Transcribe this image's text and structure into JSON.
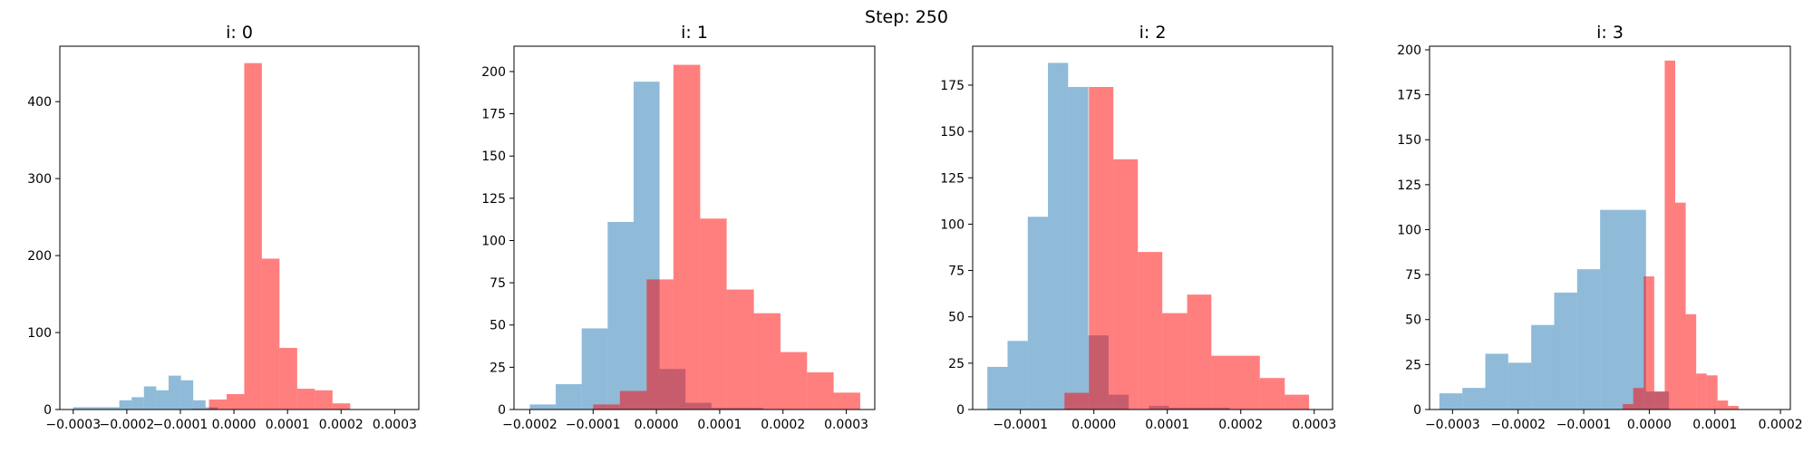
{
  "figure": {
    "suptitle": "Step: 250"
  },
  "colors": {
    "blue": "#1f77b4",
    "red": "#ff0000"
  },
  "chart_data": [
    {
      "type": "histogram",
      "title": "i: 0",
      "xlim": [
        -0.000325,
        0.000345
      ],
      "ylim": [
        0,
        472
      ],
      "xticks": [
        -0.0003,
        -0.0002,
        -0.0001,
        0.0,
        0.0001,
        0.0002,
        0.0003
      ],
      "xtick_labels": [
        "−0.0003",
        "−0.0002",
        "−0.0001",
        "0.0000",
        "0.0001",
        "0.0002",
        "0.0003"
      ],
      "yticks": [
        0,
        100,
        200,
        300,
        400
      ],
      "ytick_labels": [
        "0",
        "100",
        "200",
        "300",
        "400"
      ],
      "series": [
        {
          "color": "blue",
          "opacity": 0.5,
          "edges": [
            -0.0003,
            -0.000257,
            -0.000214,
            -0.000191,
            -0.000168,
            -0.000145,
            -0.000122,
            -9.9e-05,
            -7.6e-05,
            -5.3e-05,
            -3e-05,
            0.0
          ],
          "counts": [
            3,
            3,
            12,
            16,
            30,
            25,
            44,
            38,
            12,
            3,
            0
          ]
        },
        {
          "color": "red",
          "opacity": 0.5,
          "edges": [
            -7.95e-05,
            -4.66e-05,
            -1.37e-05,
            1.92e-05,
            5.21e-05,
            8.5e-05,
            0.000118,
            0.000151,
            0.000184,
            0.000217,
            0.00025,
            0.000283
          ],
          "counts": [
            1,
            13,
            20,
            450,
            196,
            80,
            27,
            25,
            8,
            0,
            0
          ]
        }
      ]
    },
    {
      "type": "histogram",
      "title": "i: 1",
      "xlim": [
        -0.000225,
        0.000345
      ],
      "ylim": [
        0,
        215
      ],
      "xticks": [
        -0.0002,
        -0.0001,
        0.0,
        0.0001,
        0.0002,
        0.0003
      ],
      "xtick_labels": [
        "−0.0002",
        "−0.0001",
        "0.0000",
        "0.0001",
        "0.0002",
        "0.0003"
      ],
      "yticks": [
        0,
        25,
        50,
        75,
        100,
        125,
        150,
        175,
        200
      ],
      "ytick_labels": [
        "0",
        "25",
        "50",
        "75",
        "100",
        "125",
        "150",
        "175",
        "200"
      ],
      "series": [
        {
          "color": "blue",
          "opacity": 0.5,
          "edges": [
            -0.0002,
            -0.000159,
            -0.000118,
            -7.7e-05,
            -3.6e-05,
            5e-06,
            4.6e-05,
            8.7e-05,
            0.000128,
            0.000169,
            0.00021
          ],
          "counts": [
            3,
            15,
            48,
            111,
            194,
            24,
            4,
            1,
            1,
            0
          ]
        },
        {
          "color": "red",
          "opacity": 0.5,
          "edges": [
            -0.0001,
            -5.77e-05,
            -1.54e-05,
            2.69e-05,
            6.92e-05,
            0.000111,
            0.000154,
            0.000196,
            0.000238,
            0.00028,
            0.000322
          ],
          "counts": [
            3,
            11,
            77,
            204,
            113,
            71,
            57,
            34,
            22,
            10
          ]
        }
      ]
    },
    {
      "type": "histogram",
      "title": "i: 2",
      "xlim": [
        -0.000165,
        0.000325
      ],
      "ylim": [
        0,
        196
      ],
      "xticks": [
        -0.0001,
        0.0,
        0.0001,
        0.0002,
        0.0003
      ],
      "xtick_labels": [
        "−0.0001",
        "0.0000",
        "0.0001",
        "0.0002",
        "0.0003"
      ],
      "yticks": [
        0,
        25,
        50,
        75,
        100,
        125,
        150,
        175
      ],
      "ytick_labels": [
        "0",
        "25",
        "50",
        "75",
        "100",
        "125",
        "150",
        "175"
      ],
      "series": [
        {
          "color": "blue",
          "opacity": 0.5,
          "edges": [
            -0.000145,
            -0.0001175,
            -9e-05,
            -6.25e-05,
            -3.5e-05,
            -7.5e-06,
            2e-05,
            4.75e-05,
            7.5e-05,
            0.0001025,
            0.00013,
            0.0001575,
            0.000185,
            0.0002125,
            0.00024
          ],
          "counts": [
            23,
            37,
            104,
            187,
            174,
            40,
            8,
            0,
            2,
            1,
            1,
            1,
            0,
            0
          ]
        },
        {
          "color": "red",
          "opacity": 0.5,
          "edges": [
            -4e-05,
            -6.7e-06,
            2.66e-05,
            5.99e-05,
            9.32e-05,
            0.000127,
            0.00016,
            0.000193,
            0.000226,
            0.00026,
            0.000293,
            0.000326
          ],
          "counts": [
            9,
            174,
            135,
            85,
            52,
            62,
            29,
            29,
            17,
            8,
            0
          ]
        }
      ]
    },
    {
      "type": "histogram",
      "title": "i: 3",
      "xlim": [
        -0.000335,
        0.000215
      ],
      "ylim": [
        0,
        202
      ],
      "xticks": [
        -0.0003,
        -0.0002,
        -0.0001,
        0.0,
        0.0001,
        0.0002
      ],
      "xtick_labels": [
        "−0.0003",
        "−0.0002",
        "−0.0001",
        "0.0000",
        "0.0001",
        "0.0002"
      ],
      "yticks": [
        0,
        25,
        50,
        75,
        100,
        125,
        150,
        175,
        200
      ],
      "ytick_labels": [
        "0",
        "25",
        "50",
        "75",
        "100",
        "125",
        "150",
        "175",
        "200"
      ],
      "series": [
        {
          "color": "blue",
          "opacity": 0.5,
          "edges": [
            -0.00032,
            -0.000285,
            -0.00025,
            -0.000215,
            -0.00018,
            -0.000145,
            -0.00011,
            -7.5e-05,
            -4e-05,
            -5e-06,
            3e-05
          ],
          "counts": [
            9,
            12,
            31,
            26,
            47,
            65,
            78,
            111,
            111,
            10
          ]
        },
        {
          "color": "red",
          "opacity": 0.5,
          "edges": [
            -4.05e-05,
            -2.45e-05,
            -8.5e-06,
            7.5e-06,
            2.35e-05,
            3.95e-05,
            5.55e-05,
            7.15e-05,
            8.75e-05,
            0.000104,
            0.00012,
            0.000136,
            0.000152,
            0.000168,
            0.000184,
            0.0002
          ],
          "counts": [
            3,
            12,
            74,
            10,
            194,
            115,
            53,
            20,
            19,
            5,
            2,
            0,
            0,
            0,
            0
          ]
        }
      ]
    }
  ]
}
